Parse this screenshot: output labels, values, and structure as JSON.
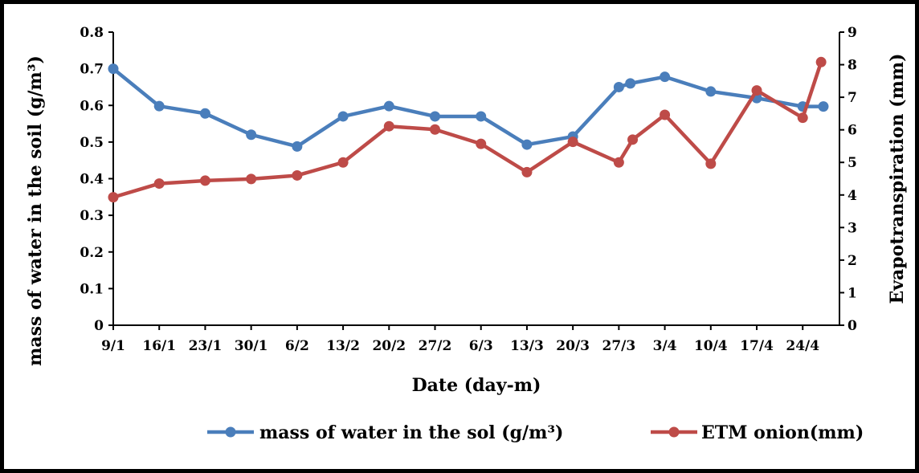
{
  "chart_data": {
    "type": "line",
    "categories": [
      "9/1",
      "16/1",
      "23/1",
      "30/1",
      "6/2",
      "13/2",
      "20/2",
      "27/2",
      "6/3",
      "13/3",
      "20/3",
      "27/3",
      "3/4",
      "10/4",
      "17/4",
      "24/4"
    ],
    "xlabel": "Date (day-m)",
    "ylabel_left": "mass of water in the soil (g/m³)",
    "ylabel_right": "Evapotranspiration (mm)",
    "ylim_left": [
      0,
      0.8
    ],
    "ylim_right": [
      0,
      9
    ],
    "yticks_left": [
      "0",
      "0.1",
      "0.2",
      "0.3",
      "0.4",
      "0.5",
      "0.6",
      "0.7",
      "0.8"
    ],
    "yticks_right": [
      "0",
      "1",
      "2",
      "3",
      "4",
      "5",
      "6",
      "7",
      "8",
      "9"
    ],
    "grid": false,
    "legend_position": "bottom",
    "series": [
      {
        "name": "mass of water in the sol (g/m³)",
        "axis": "left",
        "color": "#4a7ebb",
        "points": [
          [
            0,
            0.7
          ],
          [
            1,
            0.598
          ],
          [
            2,
            0.578
          ],
          [
            3,
            0.52
          ],
          [
            4,
            0.488
          ],
          [
            5,
            0.57
          ],
          [
            6,
            0.598
          ],
          [
            7,
            0.57
          ],
          [
            8,
            0.57
          ],
          [
            9,
            0.493
          ],
          [
            10,
            0.515
          ],
          [
            11,
            0.65
          ],
          [
            11.25,
            0.66
          ],
          [
            12,
            0.678
          ],
          [
            13,
            0.638
          ],
          [
            14,
            0.62
          ],
          [
            15,
            0.597
          ],
          [
            15.45,
            0.597
          ]
        ]
      },
      {
        "name": "ETM onion(mm)",
        "axis": "right",
        "color": "#be4b48",
        "points": [
          [
            0,
            3.93
          ],
          [
            1,
            4.35
          ],
          [
            2,
            4.44
          ],
          [
            3,
            4.49
          ],
          [
            4,
            4.6
          ],
          [
            5,
            5.0
          ],
          [
            6,
            6.11
          ],
          [
            7,
            6.01
          ],
          [
            8,
            5.57
          ],
          [
            9,
            4.7
          ],
          [
            10,
            5.63
          ],
          [
            11,
            5.0
          ],
          [
            11.3,
            5.7
          ],
          [
            12,
            6.46
          ],
          [
            13,
            4.96
          ],
          [
            14,
            7.21
          ],
          [
            15,
            6.37
          ],
          [
            15.4,
            8.08
          ]
        ]
      }
    ]
  }
}
